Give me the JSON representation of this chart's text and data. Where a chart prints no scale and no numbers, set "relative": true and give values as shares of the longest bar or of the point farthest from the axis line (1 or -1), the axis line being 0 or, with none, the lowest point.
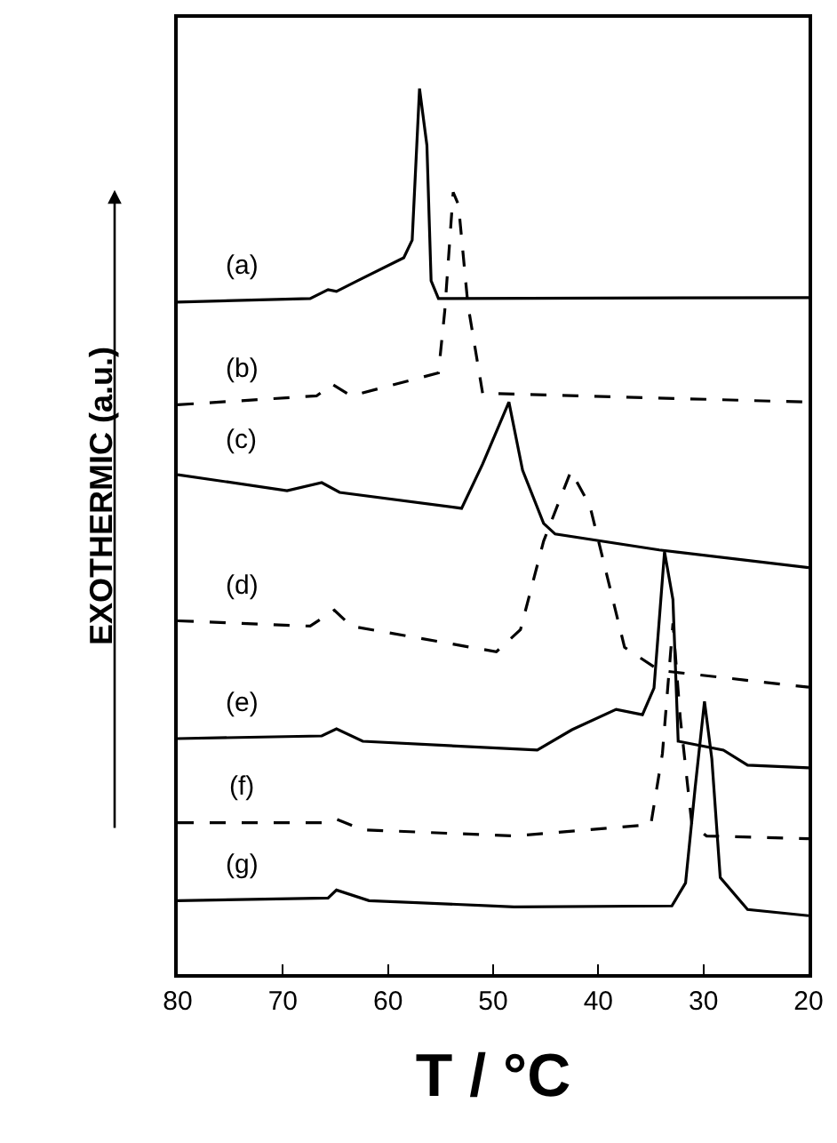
{
  "chart_data": {
    "type": "line",
    "relative": true,
    "xlabel": "T / °C",
    "ylabel": "EXOTHERMIC (a.u.)",
    "xlim": [
      80,
      20
    ],
    "xticks": [
      80,
      70,
      60,
      50,
      40,
      30,
      20
    ],
    "legend": false,
    "series": [
      {
        "name": "(a)",
        "color": "#000000",
        "line_style": "solid",
        "x": [
          80,
          67.4,
          65.7,
          64.9,
          62.9,
          58.5,
          57.7,
          57.0,
          56.3,
          55.9,
          55.2,
          20
        ],
        "values": [
          0.759,
          0.763,
          0.773,
          0.771,
          0.783,
          0.809,
          0.829,
          1.0,
          0.936,
          0.783,
          0.763,
          0.764
        ]
      },
      {
        "name": "(b)",
        "color": "#000000",
        "line_style": "dashed",
        "x": [
          80,
          66.8,
          65.3,
          63.5,
          55.2,
          54.6,
          53.8,
          53.3,
          52.4,
          51.0,
          20
        ],
        "values": [
          0.643,
          0.653,
          0.666,
          0.653,
          0.679,
          0.749,
          0.883,
          0.869,
          0.756,
          0.656,
          0.646
        ]
      },
      {
        "name": "(c)",
        "color": "#000000",
        "line_style": "solid",
        "x": [
          80,
          69.6,
          66.3,
          64.6,
          53.0,
          51.0,
          48.5,
          47.2,
          45.2,
          44.1,
          34.2,
          20
        ],
        "values": [
          0.564,
          0.546,
          0.555,
          0.544,
          0.526,
          0.576,
          0.646,
          0.569,
          0.509,
          0.497,
          0.479,
          0.459
        ]
      },
      {
        "name": "(d)",
        "color": "#000000",
        "line_style": "dashed",
        "x": [
          80,
          67.4,
          65.1,
          63.5,
          49.7,
          47.4,
          45.2,
          42.6,
          40.8,
          37.5,
          34.2,
          20
        ],
        "values": [
          0.399,
          0.393,
          0.411,
          0.393,
          0.364,
          0.389,
          0.489,
          0.568,
          0.529,
          0.369,
          0.343,
          0.324
        ]
      },
      {
        "name": "(e)",
        "color": "#000000",
        "line_style": "solid",
        "x": [
          80,
          66.3,
          64.9,
          62.4,
          45.8,
          42.5,
          38.3,
          35.8,
          34.7,
          33.7,
          32.9,
          32.4,
          28.1,
          25.8,
          20
        ],
        "values": [
          0.266,
          0.269,
          0.277,
          0.263,
          0.253,
          0.276,
          0.299,
          0.293,
          0.323,
          0.477,
          0.423,
          0.263,
          0.253,
          0.236,
          0.233
        ]
      },
      {
        "name": "(f)",
        "color": "#000000",
        "line_style": "dashed",
        "x": [
          80,
          66.3,
          64.9,
          62.4,
          48.0,
          35.0,
          33.9,
          32.9,
          32.2,
          31.1,
          29.7,
          20
        ],
        "values": [
          0.171,
          0.171,
          0.175,
          0.163,
          0.156,
          0.169,
          0.249,
          0.396,
          0.289,
          0.169,
          0.156,
          0.153
        ]
      },
      {
        "name": "(g)",
        "color": "#000000",
        "line_style": "solid",
        "x": [
          80,
          65.7,
          64.9,
          61.8,
          48.0,
          33.0,
          31.7,
          30.8,
          29.9,
          29.2,
          28.4,
          25.8,
          20
        ],
        "values": [
          0.083,
          0.086,
          0.095,
          0.083,
          0.076,
          0.077,
          0.103,
          0.209,
          0.308,
          0.243,
          0.109,
          0.073,
          0.066
        ]
      }
    ]
  }
}
